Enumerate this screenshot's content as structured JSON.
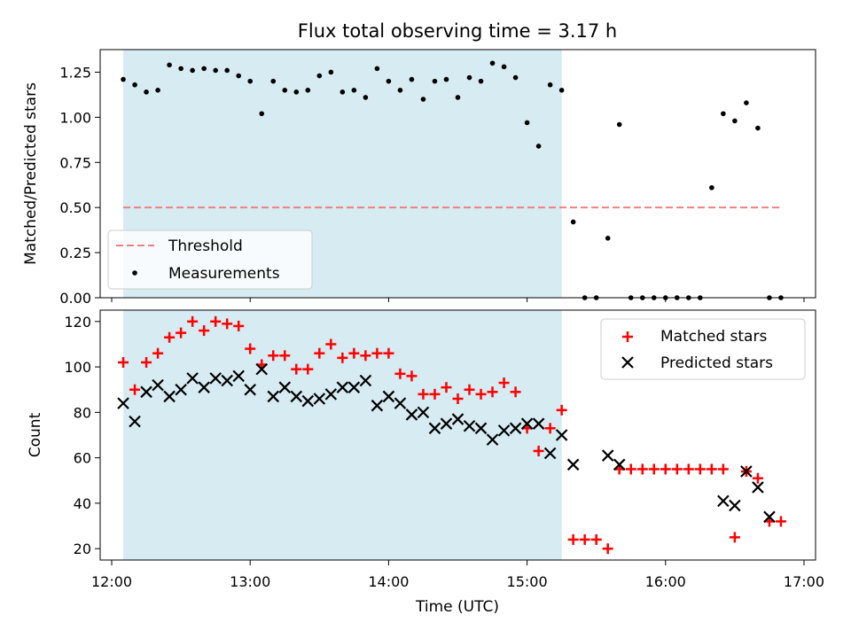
{
  "chart_data": [
    {
      "type": "scatter",
      "title": "Flux total observing time = 3.17 h",
      "xlabel": "",
      "ylabel": "Matched/Predicted stars",
      "ylim": [
        0,
        1.375
      ],
      "yticks": [
        "0.00",
        "0.25",
        "0.50",
        "0.75",
        "1.00",
        "1.25"
      ],
      "threshold": 0.5,
      "threshold_x": [
        "12:05",
        "16:50"
      ],
      "threshold_color": "#f08080",
      "shaded_region": [
        "12:05",
        "15:15"
      ],
      "shade_color": "#add8e6",
      "legend": {
        "position": "lower-left",
        "entries": [
          "Threshold",
          "Measurements"
        ]
      },
      "series": [
        {
          "name": "Measurements",
          "marker": "dot",
          "color": "#000000",
          "x": [
            "12:05",
            "12:10",
            "12:15",
            "12:20",
            "12:25",
            "12:30",
            "12:35",
            "12:40",
            "12:45",
            "12:50",
            "12:55",
            "13:00",
            "13:05",
            "13:10",
            "13:15",
            "13:20",
            "13:25",
            "13:30",
            "13:35",
            "13:40",
            "13:45",
            "13:50",
            "13:55",
            "14:00",
            "14:05",
            "14:10",
            "14:15",
            "14:20",
            "14:25",
            "14:30",
            "14:35",
            "14:40",
            "14:45",
            "14:50",
            "14:55",
            "15:00",
            "15:05",
            "15:10",
            "15:15",
            "15:20",
            "15:25",
            "15:30",
            "15:35",
            "15:40",
            "15:45",
            "15:50",
            "15:55",
            "16:00",
            "16:05",
            "16:10",
            "16:15",
            "16:20",
            "16:25",
            "16:30",
            "16:35",
            "16:40",
            "16:45",
            "16:50"
          ],
          "y": [
            1.21,
            1.18,
            1.14,
            1.15,
            1.29,
            1.27,
            1.26,
            1.27,
            1.26,
            1.26,
            1.23,
            1.2,
            1.02,
            1.2,
            1.15,
            1.14,
            1.15,
            1.23,
            1.25,
            1.14,
            1.15,
            1.11,
            1.27,
            1.2,
            1.15,
            1.21,
            1.1,
            1.2,
            1.21,
            1.11,
            1.22,
            1.2,
            1.3,
            1.28,
            1.22,
            0.97,
            0.84,
            1.18,
            1.15,
            0.42,
            0.0,
            0.0,
            0.33,
            0.96,
            0.0,
            0.0,
            0.0,
            0.0,
            0.0,
            0.0,
            0.0,
            0.61,
            1.02,
            0.98,
            1.08,
            0.94,
            0.0,
            0.0
          ]
        }
      ]
    },
    {
      "type": "scatter",
      "title": "",
      "xlabel": "Time (UTC)",
      "ylabel": "Count",
      "ylim": [
        15,
        125
      ],
      "yticks": [
        "20",
        "40",
        "60",
        "80",
        "100",
        "120"
      ],
      "xlim": [
        "11:55",
        "17:05"
      ],
      "xticks": [
        "12:00",
        "13:00",
        "14:00",
        "15:00",
        "16:00",
        "17:00"
      ],
      "shaded_region": [
        "12:05",
        "15:15"
      ],
      "legend": {
        "position": "top-right",
        "entries": [
          "Matched stars",
          "Predicted stars"
        ]
      },
      "series": [
        {
          "name": "Matched stars",
          "marker": "plus",
          "color": "#ff0000",
          "x": [
            "12:05",
            "12:10",
            "12:15",
            "12:20",
            "12:25",
            "12:30",
            "12:35",
            "12:40",
            "12:45",
            "12:50",
            "12:55",
            "13:00",
            "13:05",
            "13:10",
            "13:15",
            "13:20",
            "13:25",
            "13:30",
            "13:35",
            "13:40",
            "13:45",
            "13:50",
            "13:55",
            "14:00",
            "14:05",
            "14:10",
            "14:15",
            "14:20",
            "14:25",
            "14:30",
            "14:35",
            "14:40",
            "14:45",
            "14:50",
            "14:55",
            "15:00",
            "15:05",
            "15:10",
            "15:15",
            "15:20",
            "15:25",
            "15:30",
            "15:35",
            "15:40",
            "15:45",
            "15:50",
            "15:55",
            "16:00",
            "16:05",
            "16:10",
            "16:15",
            "16:20",
            "16:25",
            "16:30",
            "16:35",
            "16:40",
            "16:45",
            "16:50"
          ],
          "y": [
            102,
            90,
            102,
            106,
            113,
            115,
            120,
            116,
            120,
            119,
            118,
            108,
            101,
            105,
            105,
            99,
            99,
            106,
            110,
            104,
            106,
            105,
            106,
            106,
            97,
            96,
            88,
            88,
            91,
            86,
            90,
            88,
            89,
            93,
            89,
            73,
            63,
            73,
            81,
            24,
            24,
            24,
            20,
            55,
            55,
            55,
            55,
            55,
            55,
            55,
            55,
            55,
            55,
            25,
            54,
            51,
            32,
            32
          ]
        },
        {
          "name": "Predicted stars",
          "marker": "x",
          "color": "#000000",
          "x": [
            "12:05",
            "12:10",
            "12:15",
            "12:20",
            "12:25",
            "12:30",
            "12:35",
            "12:40",
            "12:45",
            "12:50",
            "12:55",
            "13:00",
            "13:05",
            "13:10",
            "13:15",
            "13:20",
            "13:25",
            "13:30",
            "13:35",
            "13:40",
            "13:45",
            "13:50",
            "13:55",
            "14:00",
            "14:05",
            "14:10",
            "14:15",
            "14:20",
            "14:25",
            "14:30",
            "14:35",
            "14:40",
            "14:45",
            "14:50",
            "14:55",
            "15:00",
            "15:05",
            "15:10",
            "15:15",
            "15:20",
            "15:35",
            "15:40",
            "16:25",
            "16:30",
            "16:35",
            "16:40",
            "16:45"
          ],
          "y": [
            84,
            76,
            89,
            92,
            87,
            90,
            95,
            91,
            95,
            94,
            96,
            90,
            99,
            87,
            91,
            87,
            85,
            86,
            88,
            91,
            91,
            94,
            83,
            87,
            84,
            79,
            80,
            73,
            75,
            77,
            74,
            73,
            68,
            72,
            73,
            75,
            75,
            62,
            70,
            57,
            61,
            57,
            41,
            39,
            54,
            47,
            34
          ]
        }
      ]
    }
  ]
}
